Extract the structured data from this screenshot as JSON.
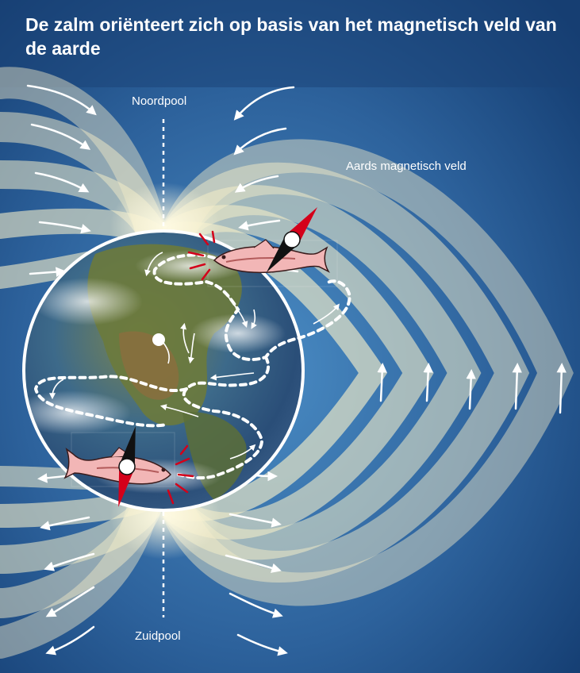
{
  "title": "De zalm oriënteert zich op basis van het magnetisch veld van de aarde",
  "labels": {
    "north_pole": "Noordpool",
    "south_pole": "Zuidpool",
    "magnetic_field": "Aards magnetisch veld"
  },
  "colors": {
    "background_dark": "#123a6e",
    "background_light": "#3f7fb8",
    "field_band": "#f3ecc8",
    "earth_ocean": "#2c5c8c",
    "earth_land": "#6b7a3c",
    "fish_body": "#f2b6b6",
    "compass_north": "#d4001a",
    "compass_south": "#111111",
    "signal_lines": "#d4001a",
    "text": "#ffffff"
  },
  "icons": {
    "fish": "salmon-icon",
    "compass": "compass-needle-icon",
    "path": "migration-path",
    "arrows": "field-direction-arrow-icon"
  }
}
